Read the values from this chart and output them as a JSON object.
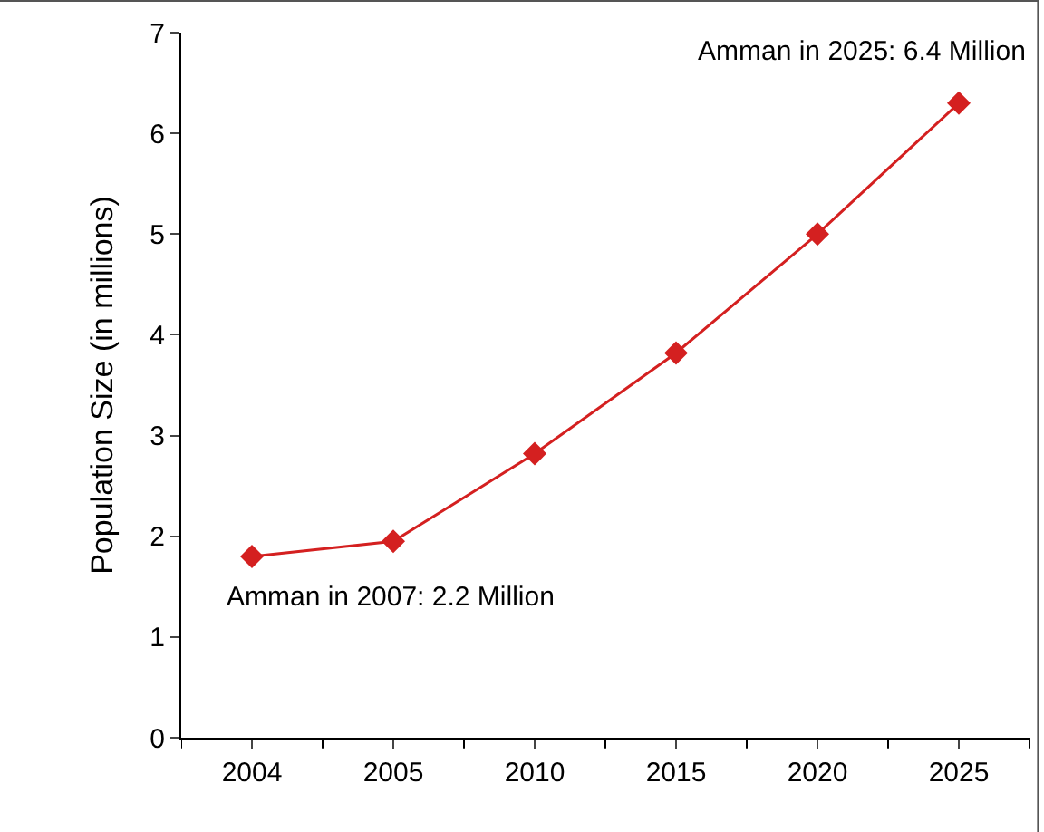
{
  "chart_data": {
    "type": "line",
    "ylabel": "Population Size (in millions)",
    "categories": [
      "2004",
      "2005",
      "2010",
      "2015",
      "2020",
      "2025"
    ],
    "series": [
      {
        "color": "#d42020",
        "values": [
          1.8,
          1.95,
          2.82,
          3.82,
          5.0,
          6.3
        ]
      }
    ],
    "ylim": [
      0,
      7
    ],
    "yticks": [
      0,
      1,
      2,
      3,
      4,
      5,
      6,
      7
    ],
    "marker": "diamond",
    "line_style": "solid",
    "annotations": [
      "Amman in 2025: 6.4 Million",
      "Amman in 2007: 2.2 Million"
    ]
  }
}
